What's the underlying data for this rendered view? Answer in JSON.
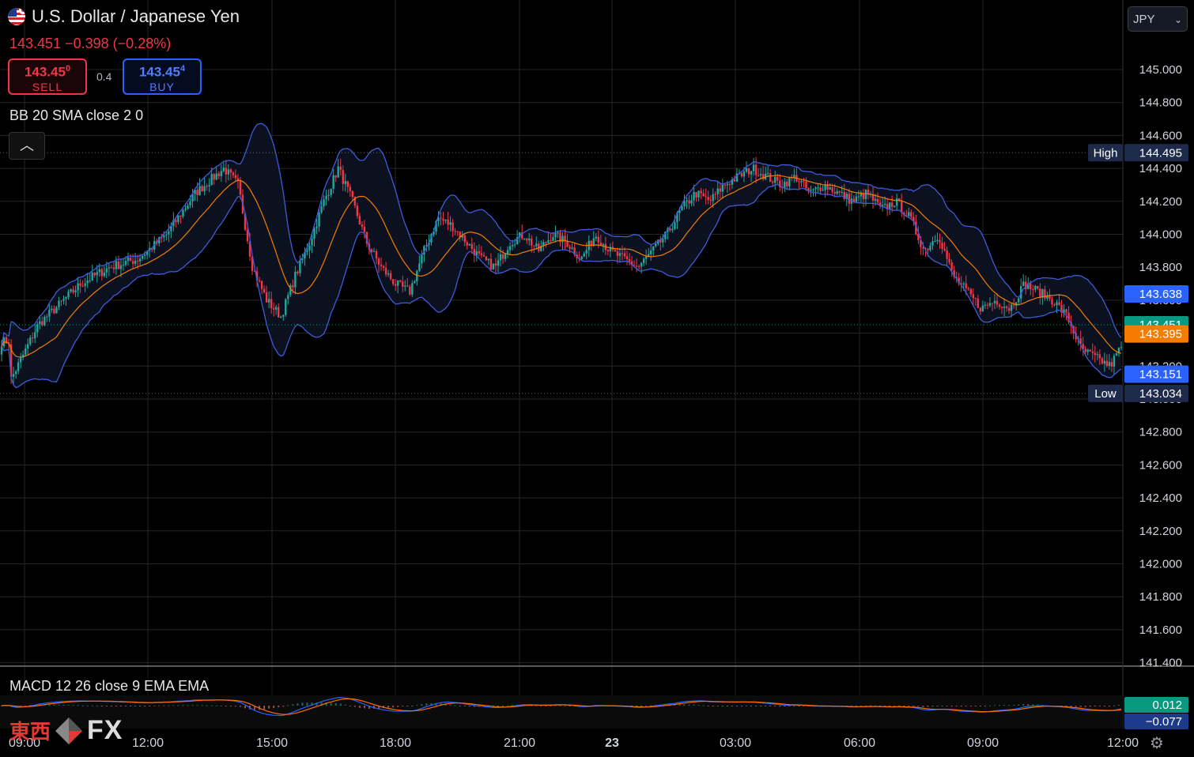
{
  "header": {
    "symbol": "U.S. Dollar / Japanese Yen",
    "last": "143.451",
    "change": "−0.398",
    "change_pct": "(−0.28%)",
    "sell": {
      "price": "143.45",
      "price_sup": "0",
      "label": "SELL"
    },
    "buy": {
      "price": "143.45",
      "price_sup": "4",
      "label": "BUY"
    },
    "spread": "0.4",
    "currency": "JPY"
  },
  "indicators": {
    "bb": "BB 20 SMA close 2 0",
    "macd": "MACD 12 26 close 9 EMA EMA"
  },
  "watermark": {
    "cn": "東西",
    "fx": "FX"
  },
  "colors": {
    "up": "#26a69a",
    "down": "#f23645",
    "bb_band": "#3f5bd9",
    "bb_basis": "#f57c00",
    "macd": "#2962ff",
    "signal": "#ff6d00"
  },
  "chart_data": {
    "type": "candlestick",
    "yaxis": {
      "ticks": [
        "145.000",
        "144.800",
        "144.600",
        "144.400",
        "144.200",
        "144.000",
        "143.800",
        "143.600",
        "143.400",
        "143.200",
        "143.000",
        "142.800",
        "142.600",
        "142.400",
        "142.200",
        "142.000",
        "141.800",
        "141.600",
        "141.400"
      ],
      "range": [
        141.4,
        145.2
      ]
    },
    "xaxis": {
      "ticks": [
        "09:00",
        "12:00",
        "15:00",
        "18:00",
        "21:00",
        "23",
        "03:00",
        "06:00",
        "09:00",
        "12:00"
      ]
    },
    "price_labels": [
      {
        "label": "High",
        "value": "144.495",
        "kind": "high"
      },
      {
        "value": "143.638",
        "kind": "bb-upper"
      },
      {
        "value": "143.451",
        "kind": "last"
      },
      {
        "value": "143.395",
        "kind": "bb-basis"
      },
      {
        "value": "143.151",
        "kind": "bb-lower"
      },
      {
        "label": "Low",
        "value": "143.034",
        "kind": "low"
      }
    ],
    "close_anchors": [
      [
        0,
        143.1
      ],
      [
        2,
        143.45
      ],
      [
        5,
        143.7
      ],
      [
        7,
        143.8
      ],
      [
        9,
        143.85
      ],
      [
        11,
        144.0
      ],
      [
        13,
        144.25
      ],
      [
        15,
        144.4
      ],
      [
        16,
        144.3
      ],
      [
        17,
        143.8
      ],
      [
        18,
        143.6
      ],
      [
        19,
        143.5
      ],
      [
        20,
        143.75
      ],
      [
        21,
        143.95
      ],
      [
        22,
        144.2
      ],
      [
        23,
        144.4
      ],
      [
        24,
        144.2
      ],
      [
        25,
        143.95
      ],
      [
        26,
        143.8
      ],
      [
        27,
        143.7
      ],
      [
        28,
        143.65
      ],
      [
        29,
        143.9
      ],
      [
        30,
        144.1
      ],
      [
        31,
        144.05
      ],
      [
        32,
        143.95
      ],
      [
        33,
        143.85
      ],
      [
        34,
        143.8
      ],
      [
        35,
        143.95
      ],
      [
        36,
        144.0
      ],
      [
        37,
        143.9
      ],
      [
        38,
        144.0
      ],
      [
        39,
        143.95
      ],
      [
        40,
        143.85
      ],
      [
        41,
        144.0
      ],
      [
        42,
        143.9
      ],
      [
        43,
        143.85
      ],
      [
        44,
        143.8
      ],
      [
        45,
        143.9
      ],
      [
        46,
        144.0
      ],
      [
        47,
        144.15
      ],
      [
        48,
        144.25
      ],
      [
        49,
        144.2
      ],
      [
        50,
        144.3
      ],
      [
        51,
        144.35
      ],
      [
        52,
        144.4
      ],
      [
        53,
        144.35
      ],
      [
        54,
        144.3
      ],
      [
        55,
        144.35
      ],
      [
        56,
        144.25
      ],
      [
        57,
        144.3
      ],
      [
        58,
        144.25
      ],
      [
        59,
        144.2
      ],
      [
        60,
        144.25
      ],
      [
        61,
        144.15
      ],
      [
        62,
        144.2
      ],
      [
        63,
        144.1
      ],
      [
        64,
        143.9
      ],
      [
        65,
        144.0
      ],
      [
        66,
        143.75
      ],
      [
        67,
        143.65
      ],
      [
        68,
        143.55
      ],
      [
        69,
        143.6
      ],
      [
        70,
        143.55
      ],
      [
        71,
        143.7
      ],
      [
        72,
        143.65
      ],
      [
        73,
        143.6
      ],
      [
        74,
        143.5
      ],
      [
        75,
        143.3
      ],
      [
        76,
        143.25
      ],
      [
        77,
        143.2
      ],
      [
        78,
        143.35
      ]
    ],
    "close_anchor_units": "hours from 09:00 (x), JPY price (y)",
    "macd": {
      "value": "0.012",
      "signal": "−0.077"
    }
  }
}
